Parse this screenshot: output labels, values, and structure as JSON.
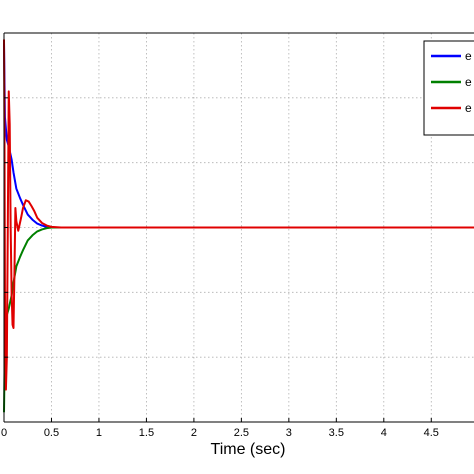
{
  "chart_data": {
    "type": "line",
    "xlabel": "Time (sec)",
    "xlim": [
      0,
      4.95
    ],
    "ylim": [
      -3,
      3
    ],
    "x_ticks": [
      0,
      0.5,
      1,
      1.5,
      2,
      2.5,
      3,
      3.5,
      4,
      4.5
    ],
    "x_tick_labels": [
      "0",
      "0.5",
      "1",
      "1.5",
      "2",
      "2.5",
      "3",
      "3.5",
      "4",
      "4.5"
    ],
    "y_grid": [
      -2,
      -1,
      0,
      1,
      2,
      3
    ],
    "grid": true,
    "legend_position": "top-right",
    "series": [
      {
        "name": "e",
        "color": "#0000ff",
        "x": [
          0,
          0.01,
          0.03,
          0.05,
          0.08,
          0.1,
          0.13,
          0.17,
          0.2,
          0.25,
          0.3,
          0.35,
          0.4,
          0.45,
          0.5,
          0.6,
          0.8,
          1.0,
          4.95
        ],
        "y": [
          2.85,
          1.7,
          1.35,
          1.25,
          1.05,
          0.85,
          0.6,
          0.45,
          0.35,
          0.2,
          0.12,
          0.06,
          0.03,
          0.01,
          0.0,
          0.0,
          0.0,
          0.0,
          0.0
        ]
      },
      {
        "name": "e",
        "color": "#008000",
        "x": [
          0,
          0.01,
          0.03,
          0.05,
          0.08,
          0.1,
          0.13,
          0.17,
          0.2,
          0.25,
          0.3,
          0.35,
          0.4,
          0.45,
          0.5,
          0.6,
          0.8,
          1.0,
          4.95
        ],
        "y": [
          -2.85,
          -1.7,
          -1.35,
          -1.25,
          -1.05,
          -0.85,
          -0.6,
          -0.45,
          -0.35,
          -0.2,
          -0.12,
          -0.06,
          -0.03,
          -0.01,
          0.0,
          0.0,
          0.0,
          0.0,
          0.0
        ]
      },
      {
        "name": "e",
        "color": "#e00000",
        "x": [
          0,
          0.005,
          0.01,
          0.02,
          0.03,
          0.04,
          0.05,
          0.06,
          0.07,
          0.08,
          0.09,
          0.1,
          0.11,
          0.12,
          0.13,
          0.15,
          0.18,
          0.2,
          0.23,
          0.26,
          0.29,
          0.32,
          0.35,
          0.4,
          0.45,
          0.5,
          0.6,
          0.7,
          0.8,
          1.0,
          4.95
        ],
        "y": [
          2.9,
          1.5,
          -1.0,
          -2.5,
          -2.0,
          0.0,
          2.1,
          1.6,
          0.0,
          -1.0,
          -1.5,
          -1.55,
          -0.7,
          0.3,
          0.1,
          -0.05,
          0.15,
          0.3,
          0.42,
          0.4,
          0.33,
          0.25,
          0.15,
          0.07,
          0.03,
          0.01,
          0.0,
          0.0,
          0.0,
          0.0,
          0.0
        ]
      }
    ]
  }
}
